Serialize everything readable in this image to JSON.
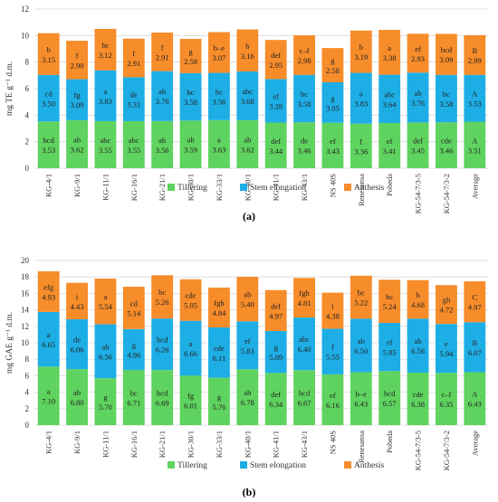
{
  "chart_data": [
    {
      "type": "bar",
      "stacked": true,
      "panel_label": "(a)",
      "ylabel": "mg TE g⁻¹ d.m.",
      "ylim": [
        0,
        12
      ],
      "yticks": [
        0,
        2,
        4,
        6,
        8,
        10,
        12
      ],
      "grid": true,
      "legend_position": "bottom",
      "categories": [
        "KG-4/1",
        "KG-9/1",
        "KG-11/1",
        "KG-16/1",
        "KG-21/1",
        "KG-30/1",
        "KG-33/1",
        "KG-40/1",
        "KG-41/1",
        "KG-43/1",
        "NS 40S",
        "Renesansa",
        "Pobeda",
        "KG-54-7/3-5",
        "KG-54-7/3-2",
        "Average"
      ],
      "series": [
        {
          "name": "Tillering",
          "color": "#5fd35f",
          "values": [
            3.53,
            3.62,
            3.55,
            3.55,
            3.56,
            3.59,
            3.63,
            3.62,
            3.44,
            3.46,
            3.43,
            3.36,
            3.41,
            3.45,
            3.46,
            3.51
          ],
          "letters": [
            "bcd",
            "ab",
            "abc",
            "abc",
            "ab",
            "ab",
            "a",
            "ab",
            "def",
            "de",
            "ef",
            "f",
            "ef",
            "def",
            "cde",
            "A"
          ]
        },
        {
          "name": "Stem elongation",
          "color": "#1eaee6",
          "values": [
            3.5,
            3.09,
            3.83,
            3.31,
            3.76,
            3.58,
            3.56,
            3.68,
            3.28,
            3.58,
            3.05,
            3.83,
            3.64,
            3.76,
            3.58,
            3.53
          ],
          "letters": [
            "cd",
            "fg",
            "a",
            "de",
            "ab",
            "bc",
            "bc",
            "abc",
            "ef",
            "bc",
            "g",
            "a",
            "abc",
            "ab",
            "bc",
            "A"
          ]
        },
        {
          "name": "Anthesis",
          "color": "#f78c2a",
          "values": [
            3.15,
            2.9,
            3.12,
            2.91,
            2.91,
            2.58,
            3.07,
            3.16,
            2.95,
            2.98,
            2.58,
            3.19,
            3.38,
            2.93,
            3.09,
            2.99
          ],
          "letters": [
            "b",
            "f",
            "bc",
            "f",
            "f",
            "g",
            "b–e",
            "b",
            "def",
            "c–f",
            "g",
            "b",
            "a",
            "ef",
            "bcd",
            "B"
          ]
        }
      ]
    },
    {
      "type": "bar",
      "stacked": true,
      "panel_label": "(b)",
      "ylabel": "mg GAE g⁻¹ d.m.",
      "ylim": [
        0,
        20
      ],
      "yticks": [
        0,
        2,
        4,
        6,
        8,
        10,
        12,
        14,
        16,
        18,
        20
      ],
      "grid": true,
      "legend_position": "bottom",
      "categories": [
        "KG-4/1",
        "KG-9/1",
        "KG-11/1",
        "KG-16/1",
        "KG-21/1",
        "KG-30/1",
        "KG-33/1",
        "KG-40/1",
        "KG-41/1",
        "KG-43/1",
        "NS 40S",
        "Renesansa",
        "Pobeda",
        "KG-54-7/3-5",
        "KG-54-7/3-2",
        "Average"
      ],
      "series": [
        {
          "name": "Tillering",
          "color": "#5fd35f",
          "values": [
            7.1,
            6.8,
            5.7,
            6.71,
            6.69,
            6.01,
            5.76,
            6.78,
            6.34,
            6.67,
            6.16,
            6.43,
            6.57,
            6.38,
            6.35,
            6.43
          ],
          "letters": [
            "a",
            "ab",
            "g",
            "bc",
            "bcd",
            "fg",
            "g",
            "ab",
            "def",
            "bcd",
            "ef",
            "b–e",
            "bcd",
            "cde",
            "c–f",
            "A"
          ]
        },
        {
          "name": "Stem elongation",
          "color": "#1eaee6",
          "values": [
            6.65,
            6.06,
            6.56,
            4.96,
            6.26,
            6.66,
            6.11,
            5.83,
            5.09,
            6.4,
            5.55,
            6.5,
            5.85,
            6.56,
            5.94,
            6.07
          ],
          "letters": [
            "a",
            "de",
            "ab",
            "g",
            "bcd",
            "a",
            "cde",
            "ef",
            "g",
            "abc",
            "f",
            "ab",
            "ef",
            "ab",
            "e",
            "B"
          ]
        },
        {
          "name": "Anthesis",
          "color": "#f78c2a",
          "values": [
            4.93,
            4.43,
            5.54,
            5.14,
            5.26,
            5.05,
            4.84,
            5.4,
            4.97,
            4.81,
            4.38,
            5.22,
            5.24,
            4.68,
            4.72,
            4.97
          ],
          "letters": [
            "efg",
            "i",
            "a",
            "cd",
            "bc",
            "cde",
            "fgh",
            "ab",
            "def",
            "fgh",
            "i",
            "bc",
            "bc",
            "h",
            "gh",
            "C"
          ]
        }
      ]
    }
  ]
}
